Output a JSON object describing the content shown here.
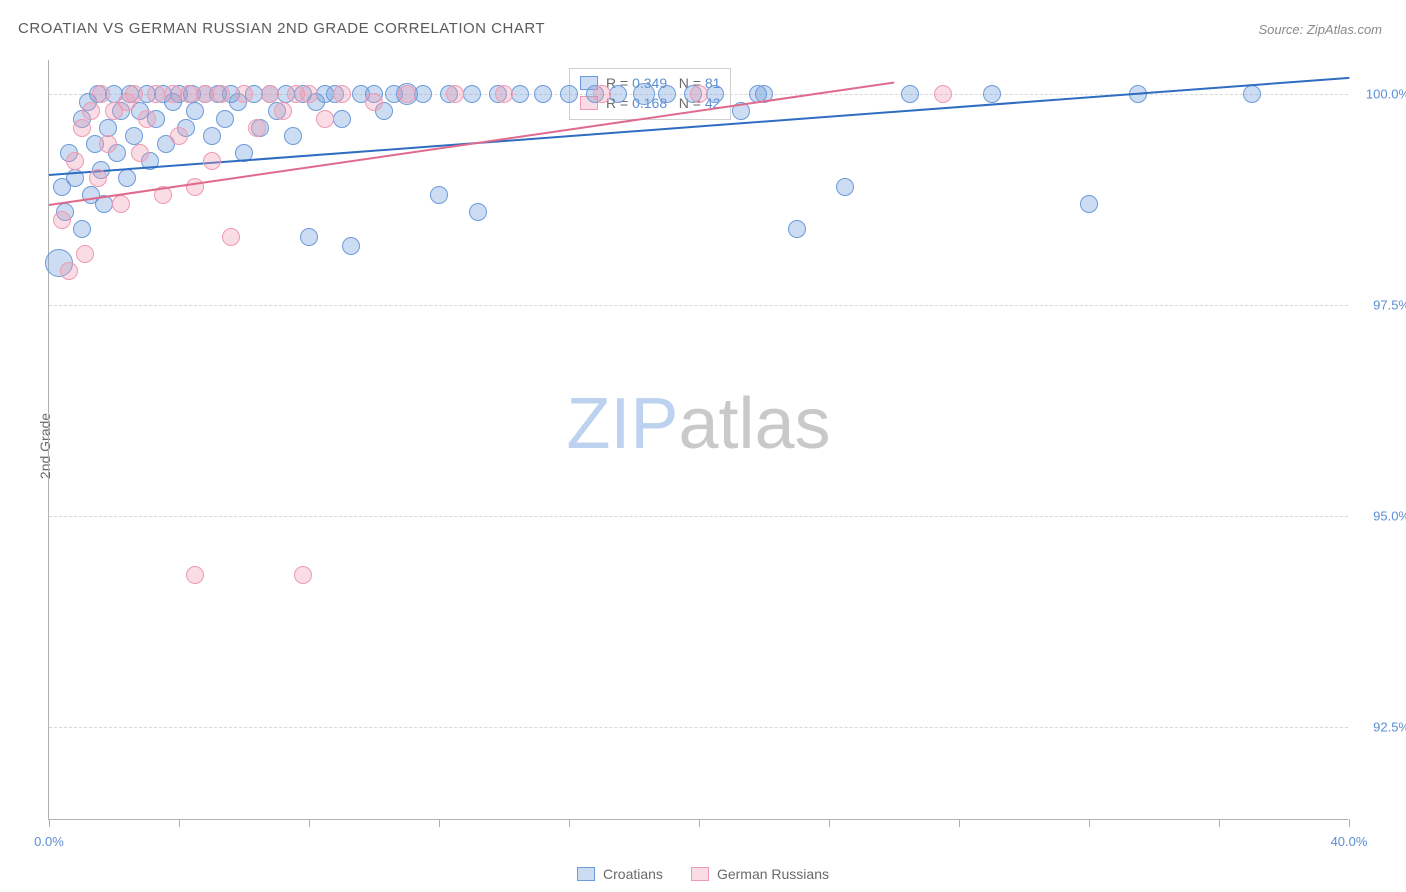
{
  "title": "CROATIAN VS GERMAN RUSSIAN 2ND GRADE CORRELATION CHART",
  "source": "Source: ZipAtlas.com",
  "watermark_a": "ZIP",
  "watermark_b": "atlas",
  "watermark_color_a": "#bcd2ef",
  "watermark_color_b": "#c9c9c9",
  "y_axis_title": "2nd Grade",
  "chart": {
    "type": "scatter",
    "x_min": 0.0,
    "x_max": 40.0,
    "y_min": 91.4,
    "y_max": 100.4,
    "x_ticks": [
      0,
      4,
      8,
      12,
      16,
      20,
      24,
      28,
      32,
      36,
      40
    ],
    "x_labels": [
      {
        "x": 0.0,
        "text": "0.0%"
      },
      {
        "x": 40.0,
        "text": "40.0%"
      }
    ],
    "y_gridlines": [
      92.5,
      95.0,
      97.5,
      100.0
    ],
    "y_labels": [
      {
        "y": 92.5,
        "text": "92.5%"
      },
      {
        "y": 95.0,
        "text": "95.0%"
      },
      {
        "y": 97.5,
        "text": "97.5%"
      },
      {
        "y": 100.0,
        "text": "100.0%"
      }
    ],
    "background": "#ffffff",
    "grid_color": "#d8d8d8",
    "text_color": "#5b8dd6",
    "series": [
      {
        "name": "Croatians",
        "fill": "rgba(108,155,217,0.35)",
        "stroke": "#6c9bd9",
        "trend_color": "#2f6dc0",
        "R": 0.349,
        "N": 81,
        "trend": {
          "x1": 0.0,
          "y1": 99.05,
          "x2": 40.0,
          "y2": 100.2
        },
        "points": [
          {
            "x": 0.3,
            "y": 98.0,
            "r": 14
          },
          {
            "x": 0.4,
            "y": 98.9,
            "r": 9
          },
          {
            "x": 0.5,
            "y": 98.6,
            "r": 9
          },
          {
            "x": 0.6,
            "y": 99.3,
            "r": 9
          },
          {
            "x": 0.8,
            "y": 99.0,
            "r": 9
          },
          {
            "x": 1.0,
            "y": 98.4,
            "r": 9
          },
          {
            "x": 1.0,
            "y": 99.7,
            "r": 9
          },
          {
            "x": 1.2,
            "y": 99.9,
            "r": 9
          },
          {
            "x": 1.3,
            "y": 98.8,
            "r": 9
          },
          {
            "x": 1.4,
            "y": 99.4,
            "r": 9
          },
          {
            "x": 1.5,
            "y": 100.0,
            "r": 9
          },
          {
            "x": 1.6,
            "y": 99.1,
            "r": 9
          },
          {
            "x": 1.7,
            "y": 98.7,
            "r": 9
          },
          {
            "x": 1.8,
            "y": 99.6,
            "r": 9
          },
          {
            "x": 2.0,
            "y": 100.0,
            "r": 9
          },
          {
            "x": 2.1,
            "y": 99.3,
            "r": 9
          },
          {
            "x": 2.2,
            "y": 99.8,
            "r": 9
          },
          {
            "x": 2.4,
            "y": 99.0,
            "r": 9
          },
          {
            "x": 2.5,
            "y": 100.0,
            "r": 9
          },
          {
            "x": 2.6,
            "y": 99.5,
            "r": 9
          },
          {
            "x": 2.8,
            "y": 99.8,
            "r": 9
          },
          {
            "x": 3.0,
            "y": 100.0,
            "r": 9
          },
          {
            "x": 3.1,
            "y": 99.2,
            "r": 9
          },
          {
            "x": 3.3,
            "y": 99.7,
            "r": 9
          },
          {
            "x": 3.5,
            "y": 100.0,
            "r": 9
          },
          {
            "x": 3.6,
            "y": 99.4,
            "r": 9
          },
          {
            "x": 3.8,
            "y": 99.9,
            "r": 9
          },
          {
            "x": 4.0,
            "y": 100.0,
            "r": 9
          },
          {
            "x": 4.2,
            "y": 99.6,
            "r": 9
          },
          {
            "x": 4.4,
            "y": 100.0,
            "r": 9
          },
          {
            "x": 4.5,
            "y": 99.8,
            "r": 9
          },
          {
            "x": 4.8,
            "y": 100.0,
            "r": 9
          },
          {
            "x": 5.0,
            "y": 99.5,
            "r": 9
          },
          {
            "x": 5.2,
            "y": 100.0,
            "r": 9
          },
          {
            "x": 5.4,
            "y": 99.7,
            "r": 9
          },
          {
            "x": 5.6,
            "y": 100.0,
            "r": 9
          },
          {
            "x": 5.8,
            "y": 99.9,
            "r": 9
          },
          {
            "x": 6.0,
            "y": 99.3,
            "r": 9
          },
          {
            "x": 6.3,
            "y": 100.0,
            "r": 9
          },
          {
            "x": 6.5,
            "y": 99.6,
            "r": 9
          },
          {
            "x": 6.8,
            "y": 100.0,
            "r": 9
          },
          {
            "x": 7.0,
            "y": 99.8,
            "r": 9
          },
          {
            "x": 7.3,
            "y": 100.0,
            "r": 9
          },
          {
            "x": 7.5,
            "y": 99.5,
            "r": 9
          },
          {
            "x": 7.8,
            "y": 100.0,
            "r": 9
          },
          {
            "x": 8.0,
            "y": 98.3,
            "r": 9
          },
          {
            "x": 8.2,
            "y": 99.9,
            "r": 9
          },
          {
            "x": 8.5,
            "y": 100.0,
            "r": 9
          },
          {
            "x": 8.8,
            "y": 100.0,
            "r": 9
          },
          {
            "x": 9.0,
            "y": 99.7,
            "r": 9
          },
          {
            "x": 9.3,
            "y": 98.2,
            "r": 9
          },
          {
            "x": 9.6,
            "y": 100.0,
            "r": 9
          },
          {
            "x": 10.0,
            "y": 100.0,
            "r": 9
          },
          {
            "x": 10.3,
            "y": 99.8,
            "r": 9
          },
          {
            "x": 10.6,
            "y": 100.0,
            "r": 9
          },
          {
            "x": 11.0,
            "y": 100.0,
            "r": 11
          },
          {
            "x": 11.5,
            "y": 100.0,
            "r": 9
          },
          {
            "x": 12.0,
            "y": 98.8,
            "r": 9
          },
          {
            "x": 12.3,
            "y": 100.0,
            "r": 9
          },
          {
            "x": 13.0,
            "y": 100.0,
            "r": 9
          },
          {
            "x": 13.2,
            "y": 98.6,
            "r": 9
          },
          {
            "x": 13.8,
            "y": 100.0,
            "r": 9
          },
          {
            "x": 14.5,
            "y": 100.0,
            "r": 9
          },
          {
            "x": 15.2,
            "y": 100.0,
            "r": 9
          },
          {
            "x": 16.0,
            "y": 100.0,
            "r": 9
          },
          {
            "x": 16.8,
            "y": 100.0,
            "r": 9
          },
          {
            "x": 17.5,
            "y": 100.0,
            "r": 9
          },
          {
            "x": 18.3,
            "y": 100.0,
            "r": 11
          },
          {
            "x": 19.0,
            "y": 100.0,
            "r": 9
          },
          {
            "x": 19.8,
            "y": 100.0,
            "r": 9
          },
          {
            "x": 20.5,
            "y": 100.0,
            "r": 9
          },
          {
            "x": 21.3,
            "y": 99.8,
            "r": 9
          },
          {
            "x": 22.0,
            "y": 100.0,
            "r": 9
          },
          {
            "x": 23.0,
            "y": 98.4,
            "r": 9
          },
          {
            "x": 24.5,
            "y": 98.9,
            "r": 9
          },
          {
            "x": 26.5,
            "y": 100.0,
            "r": 9
          },
          {
            "x": 29.0,
            "y": 100.0,
            "r": 9
          },
          {
            "x": 32.0,
            "y": 98.7,
            "r": 9
          },
          {
            "x": 33.5,
            "y": 100.0,
            "r": 9
          },
          {
            "x": 37.0,
            "y": 100.0,
            "r": 9
          },
          {
            "x": 21.8,
            "y": 100.0,
            "r": 9
          }
        ]
      },
      {
        "name": "German Russians",
        "fill": "rgba(239,154,178,0.35)",
        "stroke": "#ef9ab2",
        "trend_color": "#e06a8c",
        "R": 0.168,
        "N": 42,
        "trend": {
          "x1": 0.0,
          "y1": 98.7,
          "x2": 26.0,
          "y2": 100.15
        },
        "points": [
          {
            "x": 0.4,
            "y": 98.5,
            "r": 9
          },
          {
            "x": 0.6,
            "y": 97.9,
            "r": 9
          },
          {
            "x": 0.8,
            "y": 99.2,
            "r": 9
          },
          {
            "x": 1.0,
            "y": 99.6,
            "r": 9
          },
          {
            "x": 1.1,
            "y": 98.1,
            "r": 9
          },
          {
            "x": 1.3,
            "y": 99.8,
            "r": 9
          },
          {
            "x": 1.5,
            "y": 99.0,
            "r": 9
          },
          {
            "x": 1.6,
            "y": 100.0,
            "r": 9
          },
          {
            "x": 1.8,
            "y": 99.4,
            "r": 9
          },
          {
            "x": 2.0,
            "y": 99.8,
            "r": 9
          },
          {
            "x": 2.2,
            "y": 98.7,
            "r": 9
          },
          {
            "x": 2.4,
            "y": 99.9,
            "r": 9
          },
          {
            "x": 2.6,
            "y": 100.0,
            "r": 9
          },
          {
            "x": 2.8,
            "y": 99.3,
            "r": 9
          },
          {
            "x": 3.0,
            "y": 99.7,
            "r": 9
          },
          {
            "x": 3.3,
            "y": 100.0,
            "r": 9
          },
          {
            "x": 3.5,
            "y": 98.8,
            "r": 9
          },
          {
            "x": 3.8,
            "y": 100.0,
            "r": 9
          },
          {
            "x": 4.0,
            "y": 99.5,
            "r": 9
          },
          {
            "x": 4.3,
            "y": 100.0,
            "r": 9
          },
          {
            "x": 4.5,
            "y": 98.9,
            "r": 9
          },
          {
            "x": 4.5,
            "y": 94.3,
            "r": 9
          },
          {
            "x": 4.8,
            "y": 100.0,
            "r": 9
          },
          {
            "x": 5.0,
            "y": 99.2,
            "r": 9
          },
          {
            "x": 5.3,
            "y": 100.0,
            "r": 9
          },
          {
            "x": 5.6,
            "y": 98.3,
            "r": 9
          },
          {
            "x": 6.0,
            "y": 100.0,
            "r": 9
          },
          {
            "x": 6.4,
            "y": 99.6,
            "r": 9
          },
          {
            "x": 6.8,
            "y": 100.0,
            "r": 9
          },
          {
            "x": 7.2,
            "y": 99.8,
            "r": 9
          },
          {
            "x": 7.6,
            "y": 100.0,
            "r": 9
          },
          {
            "x": 7.8,
            "y": 94.3,
            "r": 9
          },
          {
            "x": 8.0,
            "y": 100.0,
            "r": 9
          },
          {
            "x": 8.5,
            "y": 99.7,
            "r": 9
          },
          {
            "x": 9.0,
            "y": 100.0,
            "r": 9
          },
          {
            "x": 10.0,
            "y": 99.9,
            "r": 9
          },
          {
            "x": 11.0,
            "y": 100.0,
            "r": 9
          },
          {
            "x": 12.5,
            "y": 100.0,
            "r": 9
          },
          {
            "x": 14.0,
            "y": 100.0,
            "r": 9
          },
          {
            "x": 17.0,
            "y": 100.0,
            "r": 9
          },
          {
            "x": 20.0,
            "y": 100.0,
            "r": 9
          },
          {
            "x": 27.5,
            "y": 100.0,
            "r": 9
          }
        ]
      }
    ]
  },
  "stats_legend": {
    "rows": [
      {
        "swatch_fill": "rgba(108,155,217,0.35)",
        "swatch_border": "#6c9bd9",
        "R": "0.349",
        "N": "81"
      },
      {
        "swatch_fill": "rgba(239,154,178,0.35)",
        "swatch_border": "#ef9ab2",
        "R": "0.168",
        "N": "42"
      }
    ],
    "label_R": "R =",
    "label_N": "N ="
  },
  "bottom_legend": [
    {
      "swatch_fill": "rgba(108,155,217,0.35)",
      "swatch_border": "#6c9bd9",
      "label": "Croatians"
    },
    {
      "swatch_fill": "rgba(239,154,178,0.35)",
      "swatch_border": "#ef9ab2",
      "label": "German Russians"
    }
  ]
}
